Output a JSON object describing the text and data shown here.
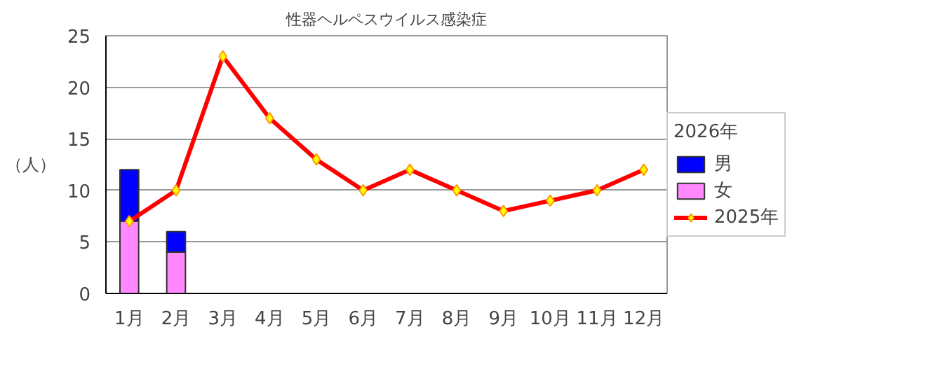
{
  "chart_data": {
    "type": "bar",
    "stacked": true,
    "title": "性器ヘルペスウイルス感染症",
    "ylabel": "（人）",
    "legend_title": "2026年",
    "categories": [
      "1月",
      "2月",
      "3月",
      "4月",
      "5月",
      "6月",
      "7月",
      "8月",
      "9月",
      "10月",
      "11月",
      "12月"
    ],
    "series": [
      {
        "name": "女",
        "color": "#ff88ff",
        "values": [
          7,
          4,
          null,
          null,
          null,
          null,
          null,
          null,
          null,
          null,
          null,
          null
        ]
      },
      {
        "name": "男",
        "color": "#0000ff",
        "values": [
          5,
          2,
          null,
          null,
          null,
          null,
          null,
          null,
          null,
          null,
          null,
          null
        ]
      },
      {
        "name": "2025年",
        "type": "line",
        "color": "#ff0000",
        "values": [
          7,
          10,
          23,
          17,
          13,
          10,
          12,
          10,
          8,
          9,
          10,
          12
        ]
      }
    ],
    "marker": "diamond",
    "ylim": [
      0,
      25
    ],
    "yticks": [
      0,
      5,
      10,
      15,
      20,
      25
    ],
    "grid": "y",
    "legend": "right"
  }
}
